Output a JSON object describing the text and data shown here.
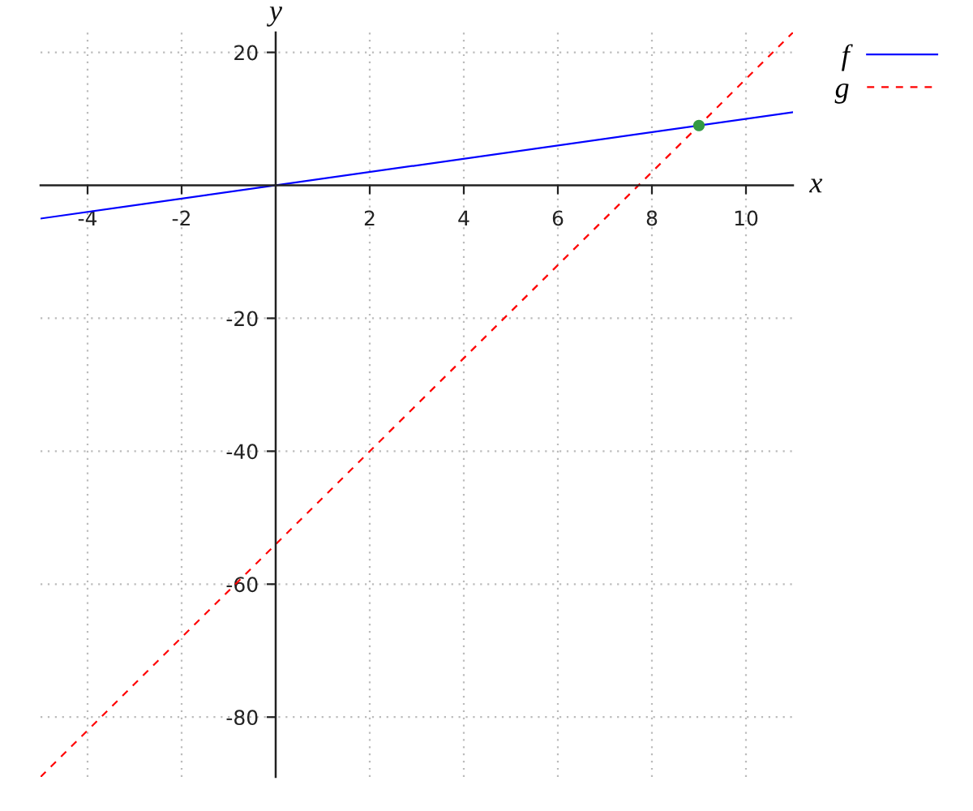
{
  "chart_data": {
    "type": "line",
    "xlabel": "x",
    "ylabel": "y",
    "xlim": [
      -5,
      11
    ],
    "ylim": [
      -89,
      23
    ],
    "xticks": [
      -4,
      -2,
      2,
      4,
      6,
      8,
      10
    ],
    "yticks": [
      -80,
      -60,
      -40,
      -20,
      20
    ],
    "grid": true,
    "legend": "top right",
    "series": [
      {
        "name": "f",
        "color": "#0000ff",
        "x": [
          -5,
          11
        ],
        "values": [
          -5,
          11
        ],
        "line_style": "solid"
      },
      {
        "name": "g",
        "color": "#ff0000",
        "x": [
          -5,
          11
        ],
        "values": [
          -89,
          23
        ],
        "line_style": "dashed"
      },
      {
        "type": "scatter",
        "color": "#339944",
        "x": [
          9
        ],
        "values": [
          9
        ],
        "marker": "circle"
      }
    ]
  }
}
